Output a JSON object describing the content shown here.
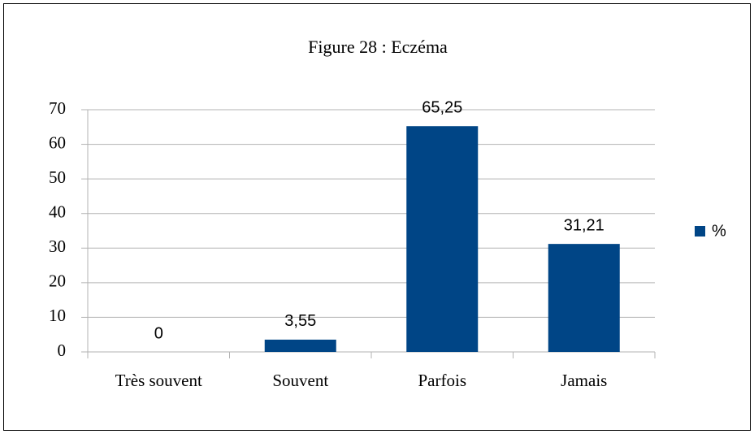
{
  "chart_data": {
    "type": "bar",
    "title": "Figure 28 : Eczéma",
    "categories": [
      "Très souvent",
      "Souvent",
      "Parfois",
      "Jamais"
    ],
    "series": [
      {
        "name": "%",
        "color": "#004586",
        "values": [
          0,
          3.55,
          65.25,
          31.21
        ],
        "value_labels": [
          "0",
          "3,55",
          "65,25",
          "31,21"
        ]
      }
    ],
    "ylim": [
      0,
      70
    ],
    "yticks": [
      0,
      10,
      20,
      30,
      40,
      50,
      60,
      70
    ],
    "grid": true,
    "legend": "right"
  }
}
